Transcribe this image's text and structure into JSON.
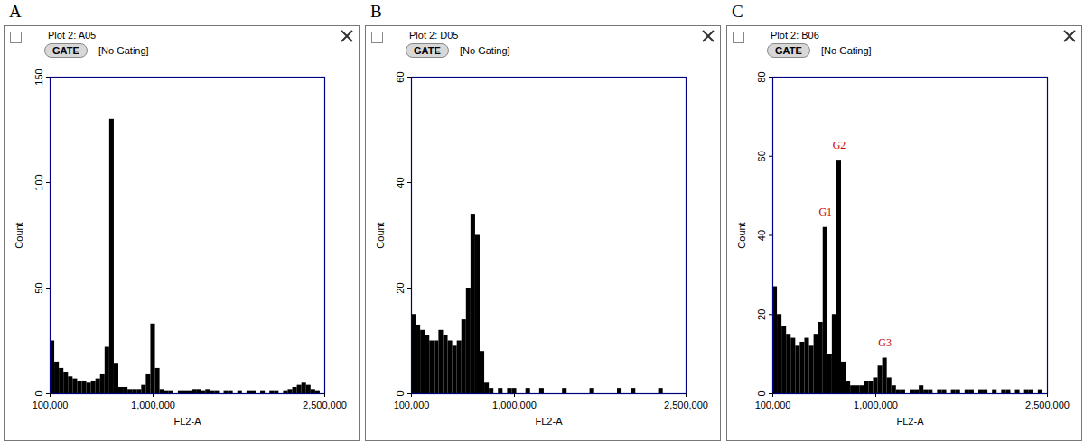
{
  "chart_data": [
    {
      "type": "histogram",
      "label": "A",
      "title": "Plot 2: A05",
      "button": "GATE",
      "subtitle": "[No Gating]",
      "xlabel": "FL2-A",
      "ylabel": "Count",
      "color": "#000000",
      "bins": [
        100000,
        140000,
        180000,
        220000,
        260000,
        300000,
        340000,
        380000,
        420000,
        460000,
        500000,
        540000,
        580000,
        620000,
        660000,
        700000,
        740000,
        780000,
        820000,
        860000,
        900000,
        940000,
        980000,
        1020000,
        1060000,
        1100000,
        1140000,
        1180000,
        1220000,
        1260000,
        1300000,
        1340000,
        1380000,
        1420000,
        1460000,
        1500000,
        1540000,
        1580000,
        1620000,
        1660000,
        1700000,
        1740000,
        1780000,
        1820000,
        1860000,
        1900000,
        1940000,
        1980000,
        2020000,
        2060000,
        2100000,
        2140000,
        2180000,
        2220000,
        2260000,
        2300000,
        2340000,
        2380000,
        2420000,
        2460000,
        2500000
      ],
      "values": [
        25,
        15,
        12,
        10,
        8,
        7,
        6,
        6,
        5,
        6,
        7,
        9,
        22,
        130,
        14,
        3,
        3,
        2,
        2,
        2,
        4,
        9,
        33,
        12,
        2,
        1,
        1,
        0,
        1,
        1,
        1,
        2,
        2,
        1,
        2,
        1,
        1,
        0,
        1,
        1,
        0,
        1,
        0,
        1,
        1,
        0,
        1,
        0,
        1,
        1,
        0,
        1,
        2,
        3,
        4,
        5,
        4,
        2,
        1,
        0
      ],
      "xlim": [
        100000,
        2500000
      ],
      "xticks": [
        {
          "value": 100000,
          "label": "100,000"
        },
        {
          "value": 1000000,
          "label": "1,000,000"
        },
        {
          "value": 2500000,
          "label": "2,500,000"
        }
      ],
      "ylim": [
        0,
        150
      ],
      "yticks": [
        0,
        50,
        100,
        150
      ],
      "grid": false
    },
    {
      "type": "histogram",
      "label": "B",
      "title": "Plot 2: D05",
      "button": "GATE",
      "subtitle": "[No Gating]",
      "xlabel": "FL2-A",
      "ylabel": "Count",
      "color": "#000000",
      "bins": [
        100000,
        140000,
        180000,
        220000,
        260000,
        300000,
        340000,
        380000,
        420000,
        460000,
        500000,
        540000,
        580000,
        620000,
        660000,
        700000,
        740000,
        780000,
        820000,
        860000,
        900000,
        940000,
        980000,
        1020000,
        1060000,
        1100000,
        1140000,
        1180000,
        1220000,
        1260000,
        1300000,
        1340000,
        1380000,
        1420000,
        1460000,
        1500000,
        1540000,
        1580000,
        1620000,
        1660000,
        1700000,
        1740000,
        1780000,
        1820000,
        1860000,
        1900000,
        1940000,
        1980000,
        2020000,
        2060000,
        2100000,
        2140000,
        2180000,
        2220000,
        2260000,
        2300000,
        2340000,
        2380000,
        2420000,
        2460000,
        2500000
      ],
      "values": [
        15,
        13,
        12,
        11,
        10,
        10,
        12,
        11,
        10,
        9,
        10,
        14,
        20,
        34,
        30,
        8,
        2,
        1,
        0,
        1,
        0,
        1,
        1,
        0,
        0,
        1,
        0,
        0,
        1,
        0,
        0,
        0,
        0,
        1,
        0,
        0,
        0,
        0,
        0,
        1,
        0,
        0,
        0,
        0,
        0,
        1,
        0,
        0,
        1,
        0,
        0,
        0,
        0,
        0,
        1,
        0,
        0,
        0,
        0,
        0
      ],
      "xlim": [
        100000,
        2500000
      ],
      "xticks": [
        {
          "value": 100000,
          "label": "100,000"
        },
        {
          "value": 1000000,
          "label": "1,000,000"
        },
        {
          "value": 2500000,
          "label": "2,500,000"
        }
      ],
      "ylim": [
        0,
        60
      ],
      "yticks": [
        0,
        20,
        40,
        60
      ],
      "grid": false
    },
    {
      "type": "histogram",
      "label": "C",
      "title": "Plot 2: B06",
      "button": "GATE",
      "subtitle": "[No Gating]",
      "xlabel": "FL2-A",
      "ylabel": "Count",
      "color": "#000000",
      "bins": [
        100000,
        140000,
        180000,
        220000,
        260000,
        300000,
        340000,
        380000,
        420000,
        460000,
        500000,
        540000,
        580000,
        620000,
        660000,
        700000,
        740000,
        780000,
        820000,
        860000,
        900000,
        940000,
        980000,
        1020000,
        1060000,
        1100000,
        1140000,
        1180000,
        1220000,
        1260000,
        1300000,
        1340000,
        1380000,
        1420000,
        1460000,
        1500000,
        1540000,
        1580000,
        1620000,
        1660000,
        1700000,
        1740000,
        1780000,
        1820000,
        1860000,
        1900000,
        1940000,
        1980000,
        2020000,
        2060000,
        2100000,
        2140000,
        2180000,
        2220000,
        2260000,
        2300000,
        2340000,
        2380000,
        2420000,
        2460000,
        2500000
      ],
      "values": [
        27,
        20,
        17,
        15,
        14,
        12,
        13,
        14,
        12,
        15,
        18,
        42,
        10,
        20,
        59,
        8,
        3,
        2,
        2,
        2,
        3,
        3,
        4,
        7,
        9,
        4,
        2,
        1,
        1,
        0,
        1,
        1,
        2,
        1,
        1,
        0,
        1,
        1,
        0,
        1,
        1,
        0,
        1,
        1,
        0,
        1,
        1,
        0,
        1,
        0,
        1,
        1,
        0,
        1,
        0,
        1,
        1,
        0,
        1,
        0
      ],
      "xlim": [
        100000,
        2500000
      ],
      "xticks": [
        {
          "value": 100000,
          "label": "100,000"
        },
        {
          "value": 1000000,
          "label": "1,000,000"
        },
        {
          "value": 2500000,
          "label": "2,500,000"
        }
      ],
      "ylim": [
        0,
        80
      ],
      "yticks": [
        0,
        20,
        40,
        60,
        80
      ],
      "grid": false,
      "annotations": [
        {
          "text": "G1",
          "x": 560000,
          "y": 44,
          "color": "#cc0000"
        },
        {
          "text": "G2",
          "x": 680000,
          "y": 61,
          "color": "#cc0000"
        },
        {
          "text": "G3",
          "x": 1080000,
          "y": 11,
          "color": "#cc0000"
        }
      ]
    }
  ]
}
